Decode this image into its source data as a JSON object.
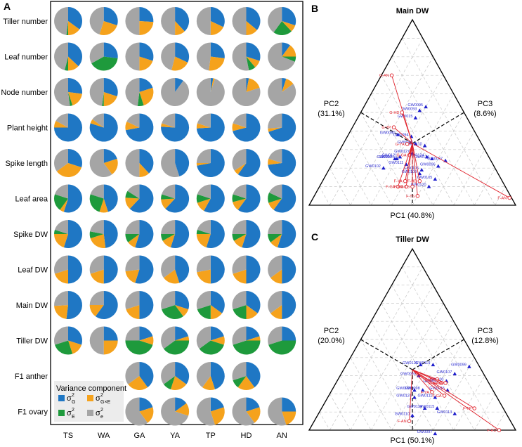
{
  "panels": {
    "a": {
      "label": "A"
    },
    "b": {
      "label": "B",
      "title": "Main DW",
      "pc1": "PC1 (40.8%)",
      "pc2_name": "PC2",
      "pc2_pct": "(31.1%)",
      "pc3_name": "PC3",
      "pc3_pct": "(8.6%)"
    },
    "c": {
      "label": "C",
      "title": "Tiller DW",
      "pc1": "PC1 (50.1%)",
      "pc2_name": "PC2",
      "pc2_pct": "(20.0%)",
      "pc3_name": "PC3",
      "pc3_pct": "(12.8%)"
    }
  },
  "legend": {
    "title": "Variance component",
    "items": [
      {
        "sym": "σ",
        "sub": "G",
        "sup": "2",
        "color": "#1f77c4"
      },
      {
        "sym": "σ",
        "sub": "G×E",
        "sup": "2",
        "color": "#f5a21c"
      },
      {
        "sym": "σ",
        "sub": "E",
        "sup": "2",
        "color": "#1e9a3c"
      },
      {
        "sym": "σ",
        "sub": "e",
        "sup": "2",
        "color": "#a5a5a5"
      }
    ]
  },
  "chart_data": [
    {
      "type": "pie",
      "title": "Variance components per trait and environment",
      "components": [
        "G",
        "GxE",
        "E",
        "e"
      ],
      "colors": [
        "#1f77c4",
        "#f5a21c",
        "#1e9a3c",
        "#a5a5a5"
      ],
      "columns": [
        "TS",
        "WA",
        "GA",
        "YA",
        "TP",
        "HD",
        "AN"
      ],
      "rows": [
        {
          "label": "Tiller number",
          "pies": [
            [
              0.35,
              0.15,
              0.02,
              0.48
            ],
            [
              0.3,
              0.25,
              0.0,
              0.45
            ],
            [
              0.26,
              0.24,
              0.0,
              0.5
            ],
            [
              0.38,
              0.12,
              0.0,
              0.5
            ],
            [
              0.32,
              0.18,
              0.0,
              0.5
            ],
            [
              0.36,
              0.14,
              0.0,
              0.5
            ],
            [
              0.3,
              0.08,
              0.22,
              0.4
            ]
          ]
        },
        {
          "label": "Leaf number",
          "pies": [
            [
              0.37,
              0.13,
              0.04,
              0.46
            ],
            [
              0.27,
              0.0,
              0.4,
              0.33
            ],
            [
              0.3,
              0.2,
              0.0,
              0.5
            ],
            [
              0.32,
              0.22,
              0.0,
              0.46
            ],
            [
              0.27,
              0.25,
              0.0,
              0.48
            ],
            [
              0.3,
              0.09,
              0.08,
              0.53
            ],
            [
              0.1,
              0.15,
              0.06,
              0.69
            ]
          ]
        },
        {
          "label": "Node number",
          "pies": [
            [
              0.27,
              0.18,
              0.03,
              0.52
            ],
            [
              0.3,
              0.2,
              0.02,
              0.48
            ],
            [
              0.2,
              0.25,
              0.07,
              0.48
            ],
            [
              0.1,
              0.0,
              0.0,
              0.9
            ],
            [
              0.03,
              0.02,
              0.0,
              0.95
            ],
            [
              0.03,
              0.17,
              0.0,
              0.8
            ],
            [
              0.05,
              0.1,
              0.0,
              0.85
            ]
          ]
        },
        {
          "label": "Plant height",
          "pies": [
            [
              0.75,
              0.08,
              0.0,
              0.17
            ],
            [
              0.8,
              0.05,
              0.0,
              0.15
            ],
            [
              0.72,
              0.1,
              0.0,
              0.18
            ],
            [
              0.76,
              0.04,
              0.0,
              0.2
            ],
            [
              0.74,
              0.06,
              0.0,
              0.2
            ],
            [
              0.71,
              0.09,
              0.0,
              0.2
            ],
            [
              0.7,
              0.04,
              0.0,
              0.26
            ]
          ]
        },
        {
          "label": "Spike length",
          "pies": [
            [
              0.3,
              0.35,
              0.0,
              0.35
            ],
            [
              0.2,
              0.2,
              0.0,
              0.6
            ],
            [
              0.38,
              0.12,
              0.0,
              0.5
            ],
            [
              0.45,
              0.0,
              0.0,
              0.55
            ],
            [
              0.72,
              0.03,
              0.0,
              0.25
            ],
            [
              0.6,
              0.06,
              0.0,
              0.34
            ],
            [
              0.73,
              0.07,
              0.0,
              0.2
            ]
          ]
        },
        {
          "label": "Leaf area",
          "pies": [
            [
              0.55,
              0.05,
              0.2,
              0.2
            ],
            [
              0.45,
              0.1,
              0.25,
              0.2
            ],
            [
              0.62,
              0.14,
              0.08,
              0.16
            ],
            [
              0.62,
              0.12,
              0.06,
              0.2
            ],
            [
              0.58,
              0.12,
              0.1,
              0.2
            ],
            [
              0.6,
              0.11,
              0.09,
              0.2
            ],
            [
              0.6,
              0.1,
              0.12,
              0.18
            ]
          ]
        },
        {
          "label": "Spike DW",
          "pies": [
            [
              0.55,
              0.2,
              0.05,
              0.2
            ],
            [
              0.48,
              0.22,
              0.08,
              0.22
            ],
            [
              0.55,
              0.1,
              0.1,
              0.25
            ],
            [
              0.55,
              0.12,
              0.08,
              0.25
            ],
            [
              0.55,
              0.2,
              0.05,
              0.2
            ],
            [
              0.55,
              0.12,
              0.08,
              0.25
            ],
            [
              0.55,
              0.1,
              0.1,
              0.25
            ]
          ]
        },
        {
          "label": "Leaf DW",
          "pies": [
            [
              0.5,
              0.2,
              0.0,
              0.3
            ],
            [
              0.5,
              0.2,
              0.0,
              0.3
            ],
            [
              0.55,
              0.18,
              0.0,
              0.27
            ],
            [
              0.45,
              0.2,
              0.0,
              0.35
            ],
            [
              0.5,
              0.22,
              0.0,
              0.28
            ],
            [
              0.5,
              0.2,
              0.0,
              0.3
            ],
            [
              0.5,
              0.15,
              0.0,
              0.35
            ]
          ]
        },
        {
          "label": "Main DW",
          "pies": [
            [
              0.52,
              0.22,
              0.0,
              0.26
            ],
            [
              0.6,
              0.15,
              0.0,
              0.25
            ],
            [
              0.5,
              0.2,
              0.0,
              0.3
            ],
            [
              0.3,
              0.1,
              0.3,
              0.3
            ],
            [
              0.35,
              0.15,
              0.2,
              0.3
            ],
            [
              0.35,
              0.15,
              0.2,
              0.3
            ],
            [
              0.5,
              0.15,
              0.0,
              0.35
            ]
          ]
        },
        {
          "label": "Tiller DW",
          "pies": [
            [
              0.3,
              0.15,
              0.25,
              0.3
            ],
            [
              0.25,
              0.25,
              0.0,
              0.5
            ],
            [
              0.2,
              0.1,
              0.45,
              0.25
            ],
            [
              0.2,
              0.05,
              0.4,
              0.35
            ],
            [
              0.2,
              0.1,
              0.35,
              0.35
            ],
            [
              0.2,
              0.05,
              0.45,
              0.3
            ],
            [
              0.25,
              0.0,
              0.45,
              0.3
            ]
          ]
        },
        {
          "label": "F1 anther",
          "pies": [
            null,
            null,
            [
              0.4,
              0.25,
              0.0,
              0.35
            ],
            [
              0.35,
              0.2,
              0.1,
              0.35
            ],
            [
              0.45,
              0.15,
              0.0,
              0.4
            ],
            [
              0.4,
              0.2,
              0.1,
              0.3
            ],
            null
          ]
        },
        {
          "label": "F1 ovary",
          "pies": [
            null,
            null,
            [
              0.2,
              0.2,
              0.0,
              0.6
            ],
            [
              0.15,
              0.15,
              0.0,
              0.7
            ],
            [
              0.2,
              0.25,
              0.0,
              0.55
            ],
            [
              0.2,
              0.2,
              0.0,
              0.6
            ],
            [
              0.25,
              0.2,
              0.0,
              0.55
            ]
          ]
        }
      ]
    },
    {
      "type": "scatter",
      "title": "Main DW",
      "plot": "ternary biplot",
      "axes": [
        "PC1 (40.8%)",
        "PC2 (31.1%)",
        "PC3 (8.6%)"
      ],
      "genotypes": [
        {
          "name": "GW0101",
          "p": [
            0.3,
            0.45,
            0.25
          ]
        },
        {
          "name": "GW0127",
          "p": [
            0.36,
            0.36,
            0.28
          ]
        },
        {
          "name": "GW0098",
          "p": [
            0.35,
            0.32,
            0.33
          ]
        },
        {
          "name": "GW0102",
          "p": [
            0.26,
            0.54,
            0.2
          ]
        },
        {
          "name": "GW0121",
          "p": [
            0.31,
            0.43,
            0.26
          ]
        },
        {
          "name": "GW0100",
          "p": [
            0.29,
            0.46,
            0.25
          ]
        },
        {
          "name": "GW0111",
          "p": [
            0.36,
            0.42,
            0.22
          ]
        },
        {
          "name": "GW0110",
          "p": [
            0.4,
            0.28,
            0.32
          ]
        },
        {
          "name": "GW0124",
          "p": [
            0.44,
            0.3,
            0.26
          ]
        },
        {
          "name": "GW0114",
          "p": [
            0.47,
            0.28,
            0.25
          ]
        },
        {
          "name": "GW0096",
          "p": [
            0.52,
            0.27,
            0.21
          ]
        },
        {
          "name": "GW0105",
          "p": [
            0.54,
            0.32,
            0.14
          ]
        },
        {
          "name": "GW0097",
          "p": [
            0.54,
            0.22,
            0.24
          ]
        },
        {
          "name": "GW0120",
          "p": [
            0.53,
            0.37,
            0.1
          ]
        },
        {
          "name": "GW0109",
          "p": [
            0.45,
            0.38,
            0.17
          ]
        },
        {
          "name": "GW0106",
          "p": [
            0.45,
            0.36,
            0.19
          ]
        },
        {
          "name": "GW0094",
          "p": [
            0.31,
            0.32,
            0.37
          ]
        },
        {
          "name": "GW0090",
          "p": [
            0.24,
            0.38,
            0.38
          ]
        },
        {
          "name": "GW0015",
          "p": [
            0.28,
            0.25,
            0.47
          ]
        },
        {
          "name": "GW0093",
          "p": [
            0.28,
            0.21,
            0.51
          ]
        },
        {
          "name": "GW0095",
          "p": [
            0.3,
            0.17,
            0.53
          ]
        }
      ],
      "environments": [
        {
          "name": "G-AN",
          "p": [
            0.05,
            0.25,
            0.7
          ]
        },
        {
          "name": "G-TP",
          "p": [
            0.2,
            0.38,
            0.42
          ]
        },
        {
          "name": "G-HD",
          "p": [
            0.2,
            0.3,
            0.5
          ]
        },
        {
          "name": "G-YA",
          "p": [
            0.31,
            0.36,
            0.33
          ]
        },
        {
          "name": "G-GA",
          "p": [
            0.35,
            0.38,
            0.27
          ]
        },
        {
          "name": "F-GA",
          "p": [
            0.38,
            0.52,
            0.1
          ]
        },
        {
          "name": "F-YA",
          "p": [
            0.4,
            0.47,
            0.13
          ]
        },
        {
          "name": "F-WA",
          "p": [
            0.42,
            0.48,
            0.1
          ]
        },
        {
          "name": "G-TS",
          "p": [
            0.45,
            0.45,
            0.1
          ]
        },
        {
          "name": "F-TS",
          "p": [
            0.5,
            0.45,
            0.05
          ]
        },
        {
          "name": "F-HD",
          "p": [
            0.47,
            0.4,
            0.13
          ]
        },
        {
          "name": "F-AN",
          "p": [
            0.95,
            0.01,
            0.04
          ]
        }
      ]
    },
    {
      "type": "scatter",
      "title": "Tiller DW",
      "plot": "ternary biplot",
      "axes": [
        "PC1 (50.1%)",
        "PC2 (20.0%)",
        "PC3 (12.8%)"
      ],
      "genotypes": [
        {
          "name": "GW0096",
          "p": [
            0.4,
            0.38,
            0.22
          ]
        },
        {
          "name": "GW0093",
          "p": [
            0.38,
            0.32,
            0.3
          ]
        },
        {
          "name": "GW0126",
          "p": [
            0.36,
            0.28,
            0.36
          ]
        },
        {
          "name": "GW0124",
          "p": [
            0.42,
            0.4,
            0.18
          ]
        },
        {
          "name": "GW0098",
          "p": [
            0.44,
            0.34,
            0.22
          ]
        },
        {
          "name": "GW0119",
          "p": [
            0.42,
            0.22,
            0.36
          ]
        },
        {
          "name": "GW0110",
          "p": [
            0.46,
            0.46,
            0.08
          ]
        },
        {
          "name": "GW0114",
          "p": [
            0.5,
            0.38,
            0.12
          ]
        },
        {
          "name": "GW0111",
          "p": [
            0.52,
            0.3,
            0.18
          ]
        },
        {
          "name": "GW0095",
          "p": [
            0.51,
            0.23,
            0.26
          ]
        },
        {
          "name": "GW0100",
          "p": [
            0.53,
            0.2,
            0.27
          ]
        },
        {
          "name": "GW0107",
          "p": [
            0.55,
            0.14,
            0.31
          ]
        },
        {
          "name": "GW0015",
          "p": [
            0.56,
            0.22,
            0.22
          ]
        },
        {
          "name": "GW0115",
          "p": [
            0.56,
            0.32,
            0.12
          ]
        },
        {
          "name": "GW0097",
          "p": [
            0.62,
            0.4,
            -0.02
          ]
        },
        {
          "name": "GW0113",
          "p": [
            0.66,
            0.25,
            0.09
          ]
        },
        {
          "name": "GW0099",
          "p": [
            0.6,
            0.05,
            0.35
          ]
        }
      ],
      "environments": [
        {
          "name": "F-HD",
          "p": [
            0.92,
            0.08,
            0.0
          ]
        },
        {
          "name": "F-TP",
          "p": [
            0.74,
            0.14,
            0.12
          ]
        },
        {
          "name": "F-AN",
          "p": [
            0.46,
            0.49,
            0.05
          ]
        },
        {
          "name": "G-AN",
          "p": [
            0.48,
            0.24,
            0.28
          ]
        },
        {
          "name": "F-WA",
          "p": [
            0.51,
            0.23,
            0.26
          ]
        },
        {
          "name": "F-GA",
          "p": [
            0.56,
            0.25,
            0.19
          ]
        },
        {
          "name": "F-YA",
          "p": [
            0.49,
            0.3,
            0.21
          ]
        },
        {
          "name": "G-YA",
          "p": [
            0.53,
            0.21,
            0.26
          ]
        }
      ]
    }
  ]
}
